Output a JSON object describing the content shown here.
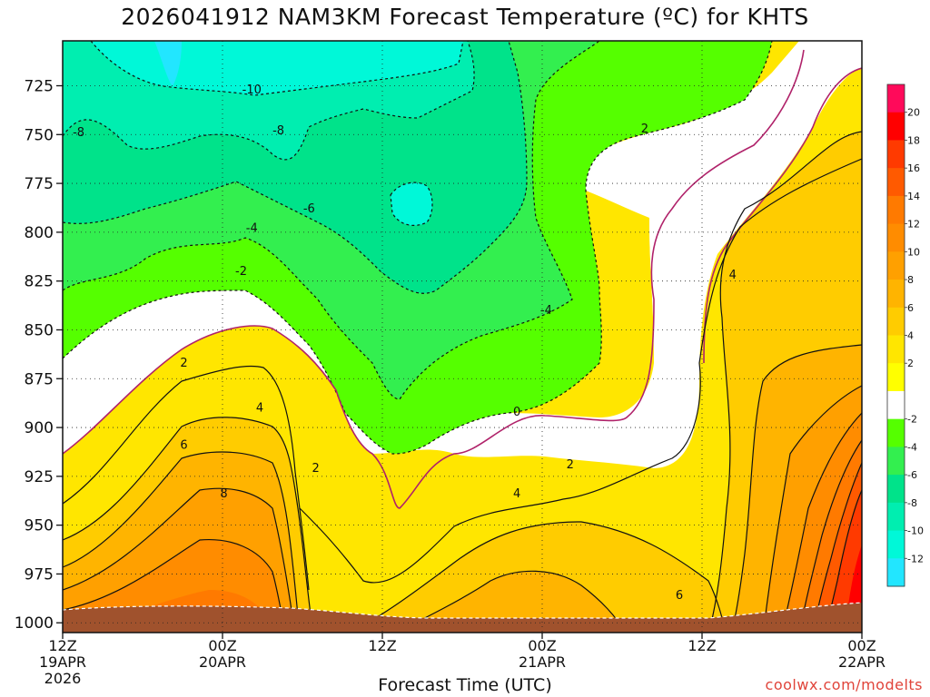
{
  "chart_data": {
    "type": "heatmap",
    "title": "2026041912 NAM3KM Forecast Temperature (ºC) for KHTS",
    "xlabel": "Forecast Time (UTC)",
    "ylabel": "",
    "x_range_hours": [
      0,
      60
    ],
    "y_range_hpa": [
      1005,
      702
    ],
    "y_scale": "pressure",
    "grid": true,
    "x_ticks": [
      {
        "hour": 0,
        "lines": [
          "12Z",
          "19APR",
          "2026"
        ]
      },
      {
        "hour": 12,
        "lines": [
          "00Z",
          "20APR"
        ]
      },
      {
        "hour": 24,
        "lines": [
          "12Z"
        ]
      },
      {
        "hour": 36,
        "lines": [
          "00Z",
          "21APR"
        ]
      },
      {
        "hour": 48,
        "lines": [
          "12Z"
        ]
      },
      {
        "hour": 60,
        "lines": [
          "00Z",
          "22APR"
        ]
      }
    ],
    "y_ticks": [
      725,
      750,
      775,
      800,
      825,
      850,
      875,
      900,
      925,
      950,
      975,
      1000
    ],
    "colorbar": {
      "labels": [
        "20",
        "18",
        "16",
        "14",
        "12",
        "10",
        "8",
        "6",
        "4",
        "2",
        "-2",
        "-4",
        "-6",
        "-8",
        "-10",
        "-12"
      ],
      "colors": [
        "#ff0a5a",
        "#ff0000",
        "#ff3a00",
        "#ff5a00",
        "#ff7a00",
        "#ff8c00",
        "#ffa000",
        "#ffb400",
        "#ffcc00",
        "#ffe600",
        "#ffff00",
        "#ffffff",
        "#55ff00",
        "#33ef4f",
        "#00e38a",
        "#00eeb0",
        "#00f8d8",
        "#22e6ff"
      ]
    },
    "contour_labels": [
      {
        "text": "-10",
        "hour": 14.2,
        "hpa": 727
      },
      {
        "text": "-8",
        "hour": 1.2,
        "hpa": 749
      },
      {
        "text": "-8",
        "hour": 16.2,
        "hpa": 748
      },
      {
        "text": "-6",
        "hour": 18.5,
        "hpa": 788
      },
      {
        "text": "-4",
        "hour": 14.2,
        "hpa": 798
      },
      {
        "text": "-2",
        "hour": 13.4,
        "hpa": 820
      },
      {
        "text": "-4",
        "hour": 36.3,
        "hpa": 840
      },
      {
        "text": "2",
        "hour": 43.7,
        "hpa": 747
      },
      {
        "text": "4",
        "hour": 50.3,
        "hpa": 822
      },
      {
        "text": "0",
        "hour": 34.1,
        "hpa": 892
      },
      {
        "text": "2",
        "hour": 9.1,
        "hpa": 867
      },
      {
        "text": "4",
        "hour": 14.8,
        "hpa": 890
      },
      {
        "text": "2",
        "hour": 19.0,
        "hpa": 921
      },
      {
        "text": "6",
        "hour": 9.1,
        "hpa": 909
      },
      {
        "text": "8",
        "hour": 12.1,
        "hpa": 934
      },
      {
        "text": "2",
        "hour": 38.1,
        "hpa": 919
      },
      {
        "text": "4",
        "hour": 34.1,
        "hpa": 934
      },
      {
        "text": "6",
        "hour": 46.3,
        "hpa": 986
      }
    ]
  },
  "credit": "coolwx.com/modelts"
}
